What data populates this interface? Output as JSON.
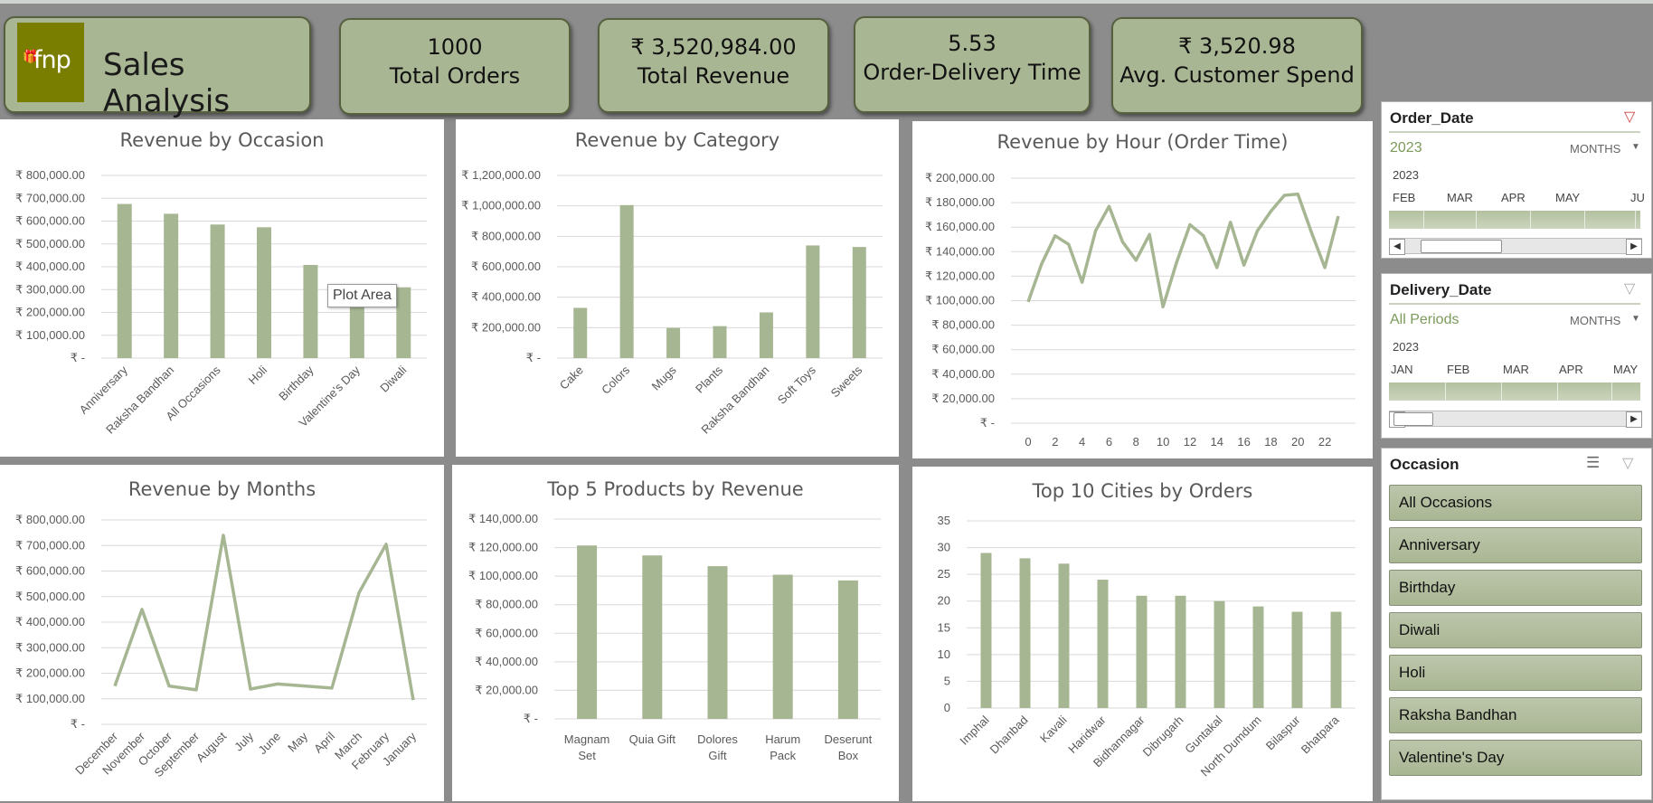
{
  "brand": {
    "logo_text": "fnp",
    "title": "Sales Analysis"
  },
  "kpis": [
    {
      "value": "1000",
      "label": "Total Orders"
    },
    {
      "value": "₹ 3,520,984.00",
      "label": "Total Revenue"
    },
    {
      "value": "5.53",
      "label": "Order-Delivery Time"
    },
    {
      "value": "₹ 3,520.98",
      "label": "Avg. Customer Spend"
    }
  ],
  "tooltip": "Plot Area",
  "colors": {
    "bar": "#a6b692",
    "line": "#a6b692",
    "kpi_fill": "#a9b693",
    "accent_text": "#7b9a5b"
  },
  "chart_data": [
    {
      "id": "occasion",
      "type": "bar",
      "title": "Revenue by Occasion",
      "categories": [
        "Anniversary",
        "Raksha Bandhan",
        "All Occasions",
        "Holi",
        "Birthday",
        "Valentine's Day",
        "Diwali"
      ],
      "values": [
        675000,
        632000,
        585000,
        573000,
        408000,
        306000,
        310000
      ],
      "ylim": [
        0,
        800000
      ],
      "yticks": [
        "₹ -",
        "₹ 100,000.00",
        "₹ 200,000.00",
        "₹ 300,000.00",
        "₹ 400,000.00",
        "₹ 500,000.00",
        "₹ 600,000.00",
        "₹ 700,000.00",
        "₹ 800,000.00"
      ],
      "grid": true
    },
    {
      "id": "category",
      "type": "bar",
      "title": "Revenue by Category",
      "categories": [
        "Cake",
        "Colors",
        "Mugs",
        "Plants",
        "Raksha Bandhan",
        "Soft Toys",
        "Sweets"
      ],
      "values": [
        330000,
        1005000,
        198000,
        210000,
        300000,
        740000,
        730000
      ],
      "ylim": [
        0,
        1200000
      ],
      "yticks": [
        "₹ -",
        "₹ 200,000.00",
        "₹ 400,000.00",
        "₹ 600,000.00",
        "₹ 800,000.00",
        "₹ 1,000,000.00",
        "₹ 1,200,000.00"
      ],
      "grid": true
    },
    {
      "id": "hour",
      "type": "line",
      "title": "Revenue by Hour (Order Time)",
      "x": [
        0,
        1,
        2,
        3,
        4,
        5,
        6,
        7,
        8,
        9,
        10,
        11,
        12,
        13,
        14,
        15,
        16,
        17,
        18,
        19,
        20,
        21,
        22,
        23
      ],
      "values": [
        99000,
        130000,
        153000,
        146000,
        115000,
        157000,
        177000,
        148000,
        133000,
        154000,
        95000,
        131000,
        162000,
        153000,
        127000,
        164000,
        129000,
        157000,
        173000,
        186000,
        187000,
        156000,
        127000,
        169000
      ],
      "xticks": [
        "0",
        "2",
        "4",
        "6",
        "8",
        "10",
        "12",
        "14",
        "16",
        "18",
        "20",
        "22"
      ],
      "ylim": [
        0,
        200000
      ],
      "yticks": [
        "₹ -",
        "₹ 20,000.00",
        "₹ 40,000.00",
        "₹ 60,000.00",
        "₹ 80,000.00",
        "₹ 100,000.00",
        "₹ 120,000.00",
        "₹ 140,000.00",
        "₹ 160,000.00",
        "₹ 180,000.00",
        "₹ 200,000.00"
      ],
      "grid": true
    },
    {
      "id": "months",
      "type": "line",
      "title": "Revenue by Months",
      "categories": [
        "December",
        "November",
        "October",
        "September",
        "August",
        "July",
        "June",
        "May",
        "April",
        "March",
        "February",
        "January"
      ],
      "values": [
        150000,
        450000,
        150000,
        135000,
        740000,
        138000,
        158000,
        150000,
        142000,
        515000,
        705000,
        95000
      ],
      "ylim": [
        0,
        800000
      ],
      "yticks": [
        "₹ -",
        "₹ 100,000.00",
        "₹ 200,000.00",
        "₹ 300,000.00",
        "₹ 400,000.00",
        "₹ 500,000.00",
        "₹ 600,000.00",
        "₹ 700,000.00",
        "₹ 800,000.00"
      ],
      "grid": true
    },
    {
      "id": "products",
      "type": "bar",
      "title": "Top 5 Products by Revenue",
      "categories": [
        [
          "Magnam",
          "Set"
        ],
        [
          "Quia Gift"
        ],
        [
          "Dolores",
          "Gift"
        ],
        [
          "Harum",
          "Pack"
        ],
        [
          "Deserunt",
          "Box"
        ]
      ],
      "values": [
        121500,
        114500,
        107000,
        101000,
        97000
      ],
      "ylim": [
        0,
        140000
      ],
      "yticks": [
        "₹ -",
        "₹ 20,000.00",
        "₹ 40,000.00",
        "₹ 60,000.00",
        "₹ 80,000.00",
        "₹ 100,000.00",
        "₹ 120,000.00",
        "₹ 140,000.00"
      ],
      "grid": true
    },
    {
      "id": "cities",
      "type": "bar",
      "title": "Top  10 Cities by Orders",
      "categories": [
        "Imphal",
        "Dhanbad",
        "Kavali",
        "Haridwar",
        "Bidhannagar",
        "Dibrugarh",
        "Guntakal",
        "North Dumdum",
        "Bilaspur",
        "Bhatpara"
      ],
      "values": [
        29,
        28,
        27,
        24,
        21,
        21,
        20,
        19,
        18,
        18
      ],
      "ylim": [
        0,
        35
      ],
      "yticks": [
        "0",
        "5",
        "10",
        "15",
        "20",
        "25",
        "30",
        "35"
      ],
      "grid": true
    }
  ],
  "slicers": {
    "order_date": {
      "title": "Order_Date",
      "selection": "2023",
      "level": "MONTHS",
      "year": "2023",
      "months": [
        "FEB",
        "MAR",
        "APR",
        "MAY",
        "JU"
      ]
    },
    "delivery_date": {
      "title": "Delivery_Date",
      "selection": "All Periods",
      "level": "MONTHS",
      "year": "2023",
      "months": [
        "JAN",
        "FEB",
        "MAR",
        "APR",
        "MAY"
      ]
    },
    "occasion": {
      "title": "Occasion",
      "items": [
        "All Occasions",
        "Anniversary",
        "Birthday",
        "Diwali",
        "Holi",
        "Raksha Bandhan",
        "Valentine's Day"
      ]
    }
  }
}
